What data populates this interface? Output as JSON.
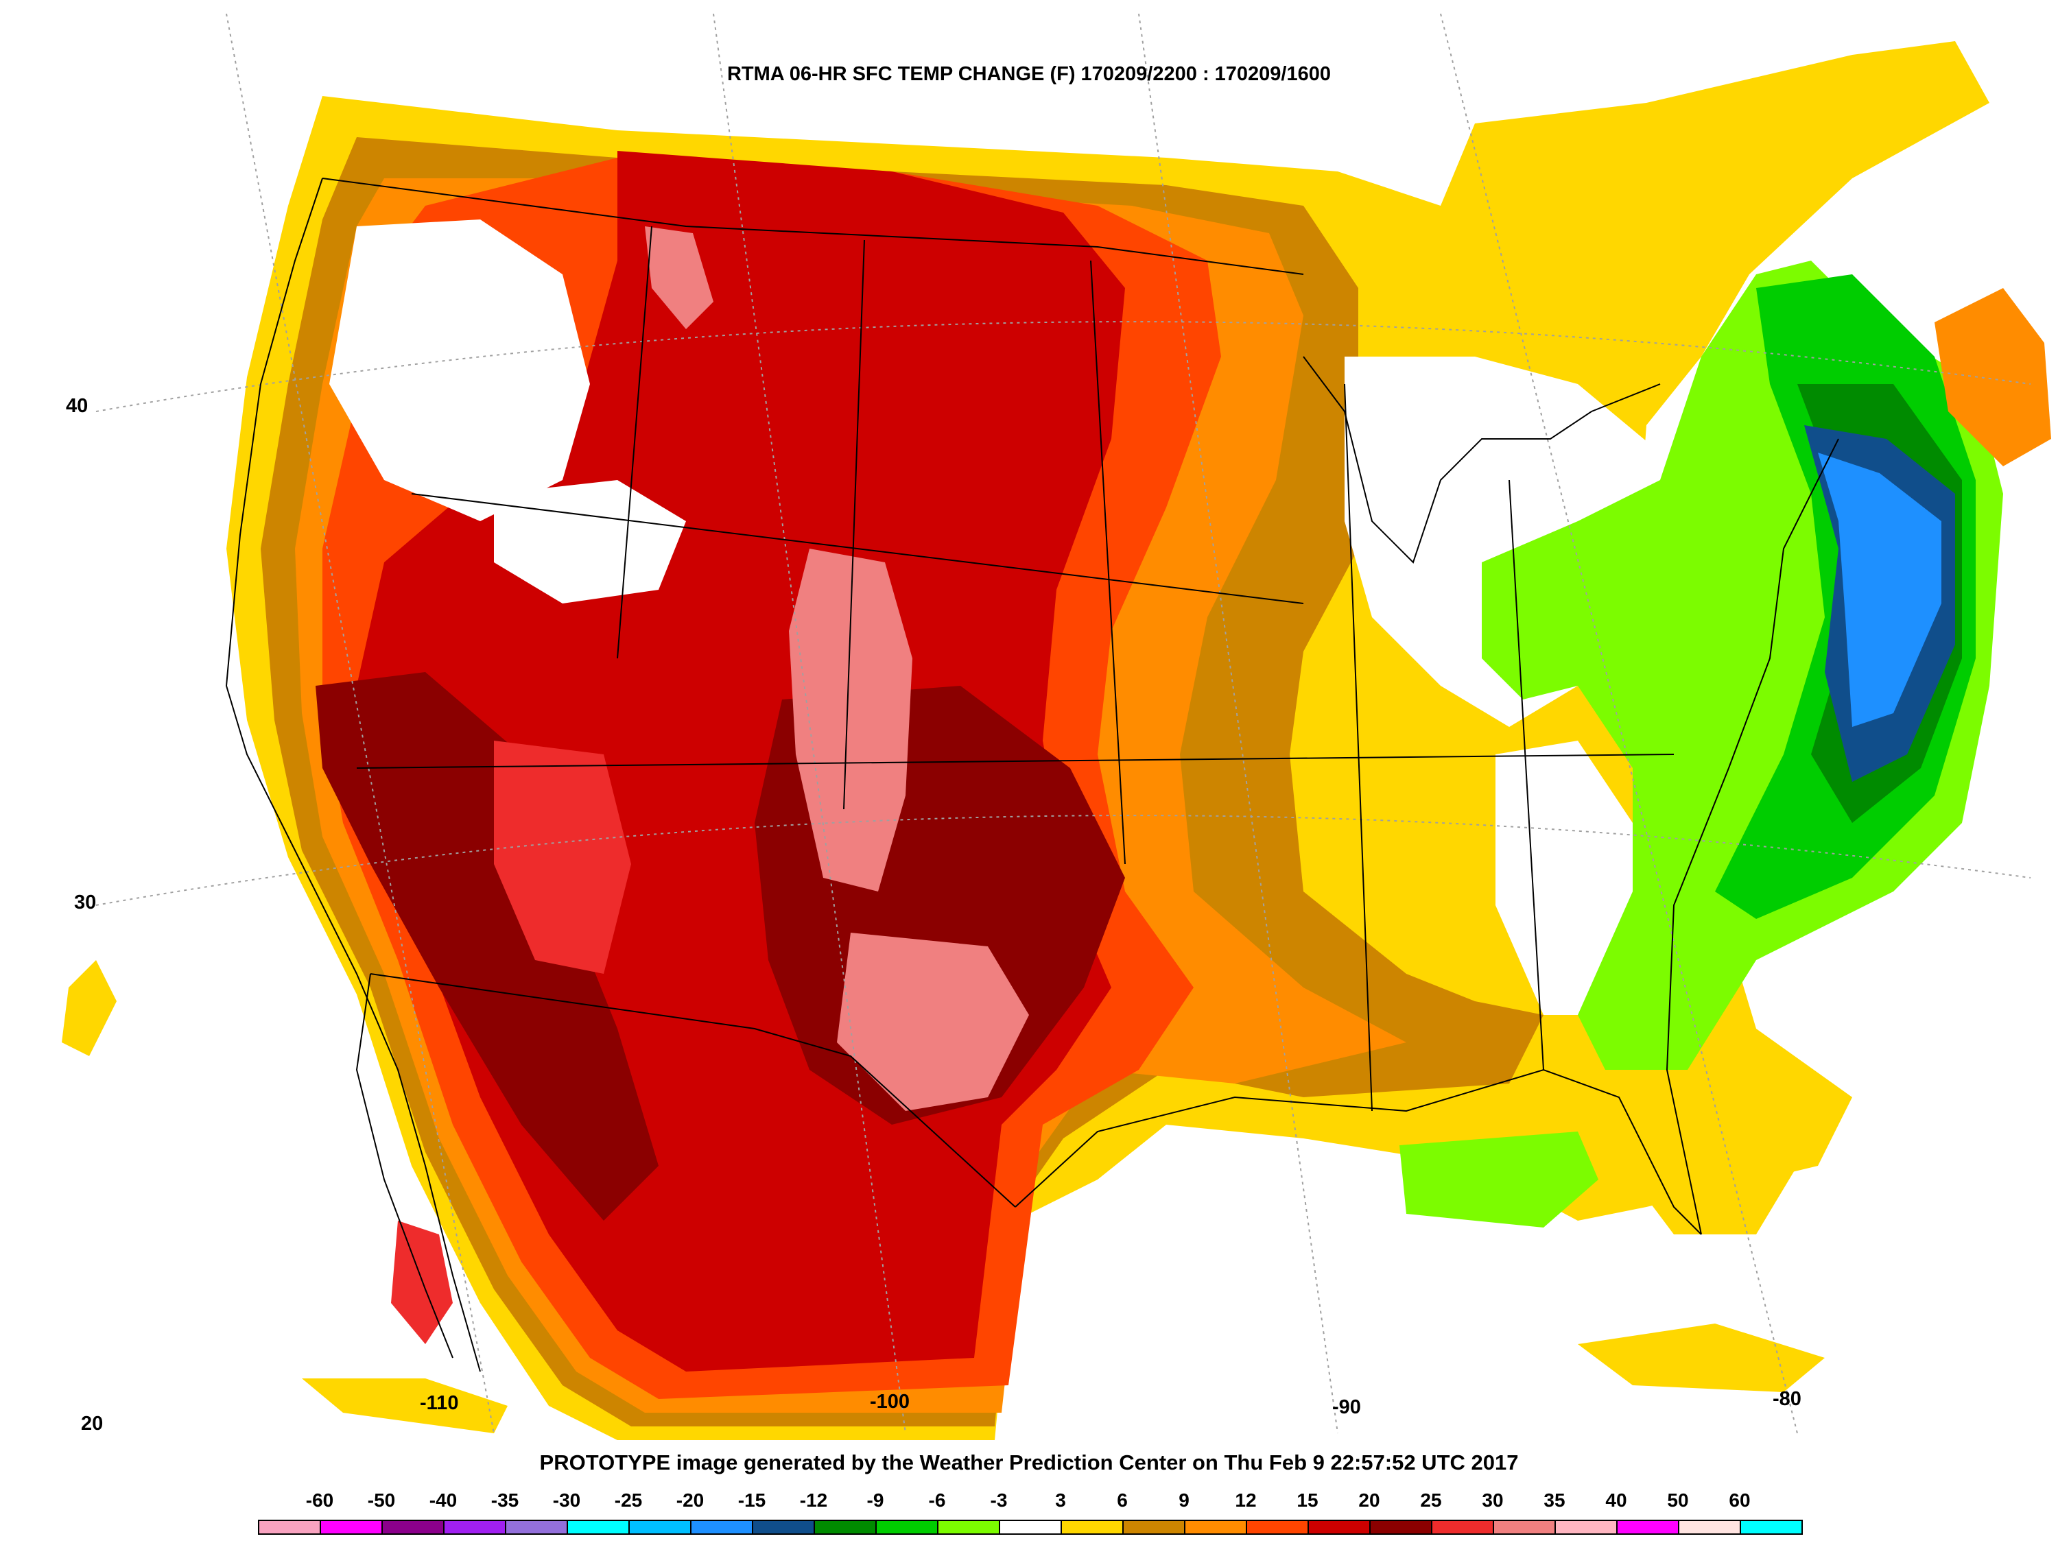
{
  "title": "RTMA 06-HR SFC TEMP CHANGE (F) 170209/2200 : 170209/1600",
  "footer": "PROTOTYPE image generated by the Weather Prediction Center on Thu Feb 9 22:57:52 UTC 2017",
  "latitude_labels": [
    "40",
    "30",
    "20"
  ],
  "longitude_labels": [
    "-110",
    "-100",
    "-90",
    "-80"
  ],
  "legend": {
    "ticks": [
      "-60",
      "-50",
      "-40",
      "-35",
      "-30",
      "-25",
      "-20",
      "-15",
      "-12",
      "-9",
      "-6",
      "-3",
      "3",
      "6",
      "9",
      "12",
      "15",
      "20",
      "25",
      "30",
      "35",
      "40",
      "50",
      "60"
    ],
    "colors": [
      "#f9a3c0",
      "#ff00ff",
      "#8b008b",
      "#a020f0",
      "#9370db",
      "#00ffff",
      "#00bfff",
      "#1e90ff",
      "#104e8b",
      "#008b00",
      "#00cd00",
      "#7cfc00",
      "#ffffff",
      "#ffd700",
      "#cd8500",
      "#ff8c00",
      "#ff4500",
      "#cd0000",
      "#8b0000",
      "#ee2c2c",
      "#f08080",
      "#ffb6c1",
      "#ff00ff",
      "#ffe4e1",
      "#00ffff"
    ]
  },
  "colors": {
    "water_background": "#ffffff",
    "boundary_lines": "#000000",
    "grid_lines": "#a0a0a0"
  }
}
